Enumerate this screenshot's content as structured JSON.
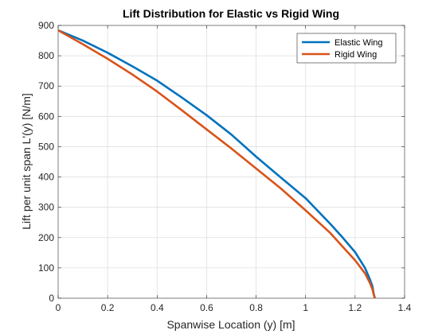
{
  "chart_data": {
    "type": "line",
    "title": "Lift Distribution for Elastic vs Rigid Wing",
    "xlabel": "Spanwise Location (y) [m]",
    "ylabel": "Lift per unit span L'(y) [N/m]",
    "xlim": [
      0,
      1.4
    ],
    "ylim": [
      0,
      900
    ],
    "xticks": [
      0,
      0.2,
      0.4,
      0.6,
      0.8,
      1,
      1.2,
      1.4
    ],
    "xtick_labels": [
      "0",
      "0.2",
      "0.4",
      "0.6",
      "0.8",
      "1",
      "1.2",
      "1.4"
    ],
    "yticks": [
      0,
      100,
      200,
      300,
      400,
      500,
      600,
      700,
      800,
      900
    ],
    "ytick_labels": [
      "0",
      "100",
      "200",
      "300",
      "400",
      "500",
      "600",
      "700",
      "800",
      "900"
    ],
    "grid": true,
    "legend_position": "top-right",
    "series": [
      {
        "name": "Elastic Wing",
        "color": "#0072BD",
        "x": [
          0,
          0.1,
          0.2,
          0.3,
          0.4,
          0.5,
          0.6,
          0.7,
          0.8,
          0.9,
          1.0,
          1.1,
          1.15,
          1.2,
          1.24,
          1.26,
          1.27,
          1.275,
          1.28
        ],
        "y": [
          884,
          850,
          810,
          765,
          718,
          662,
          604,
          540,
          467,
          398,
          330,
          245,
          200,
          152,
          100,
          62,
          40,
          15,
          0
        ]
      },
      {
        "name": "Rigid Wing",
        "color": "#D95319",
        "x": [
          0,
          0.1,
          0.2,
          0.3,
          0.4,
          0.5,
          0.6,
          0.7,
          0.8,
          0.9,
          1.0,
          1.1,
          1.15,
          1.2,
          1.24,
          1.26,
          1.27,
          1.275,
          1.28
        ],
        "y": [
          884,
          838,
          790,
          738,
          682,
          620,
          557,
          494,
          428,
          362,
          290,
          215,
          170,
          125,
          82,
          50,
          30,
          12,
          0
        ]
      }
    ]
  }
}
